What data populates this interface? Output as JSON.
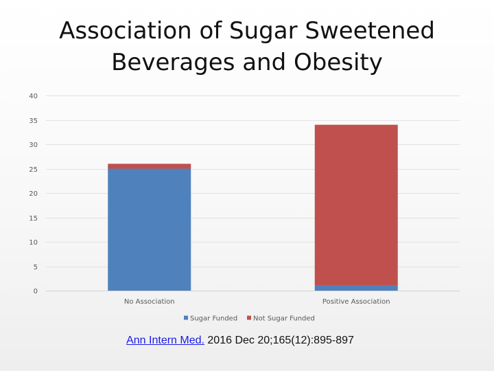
{
  "title_lines": [
    "Association of Sugar Sweetened",
    "Beverages and Obesity"
  ],
  "citation": {
    "link_text": "Ann Intern Med.",
    "rest": " 2016 Dec 20;165(12):895-897"
  },
  "chart_data": {
    "type": "bar",
    "stacked": true,
    "title": "Association of Sugar Sweetened Beverages and Obesity",
    "xlabel": "",
    "ylabel": "",
    "categories": [
      "No Association",
      "Positive Association"
    ],
    "series": [
      {
        "name": "Sugar Funded",
        "color": "#4f81bd",
        "values": [
          25,
          1
        ]
      },
      {
        "name": "Not Sugar Funded",
        "color": "#c0504d",
        "values": [
          1,
          33
        ]
      }
    ],
    "ylim": [
      0,
      40
    ],
    "yticks": [
      0,
      5,
      10,
      15,
      20,
      25,
      30,
      35,
      40
    ],
    "grid": true,
    "legend": "bottom"
  }
}
